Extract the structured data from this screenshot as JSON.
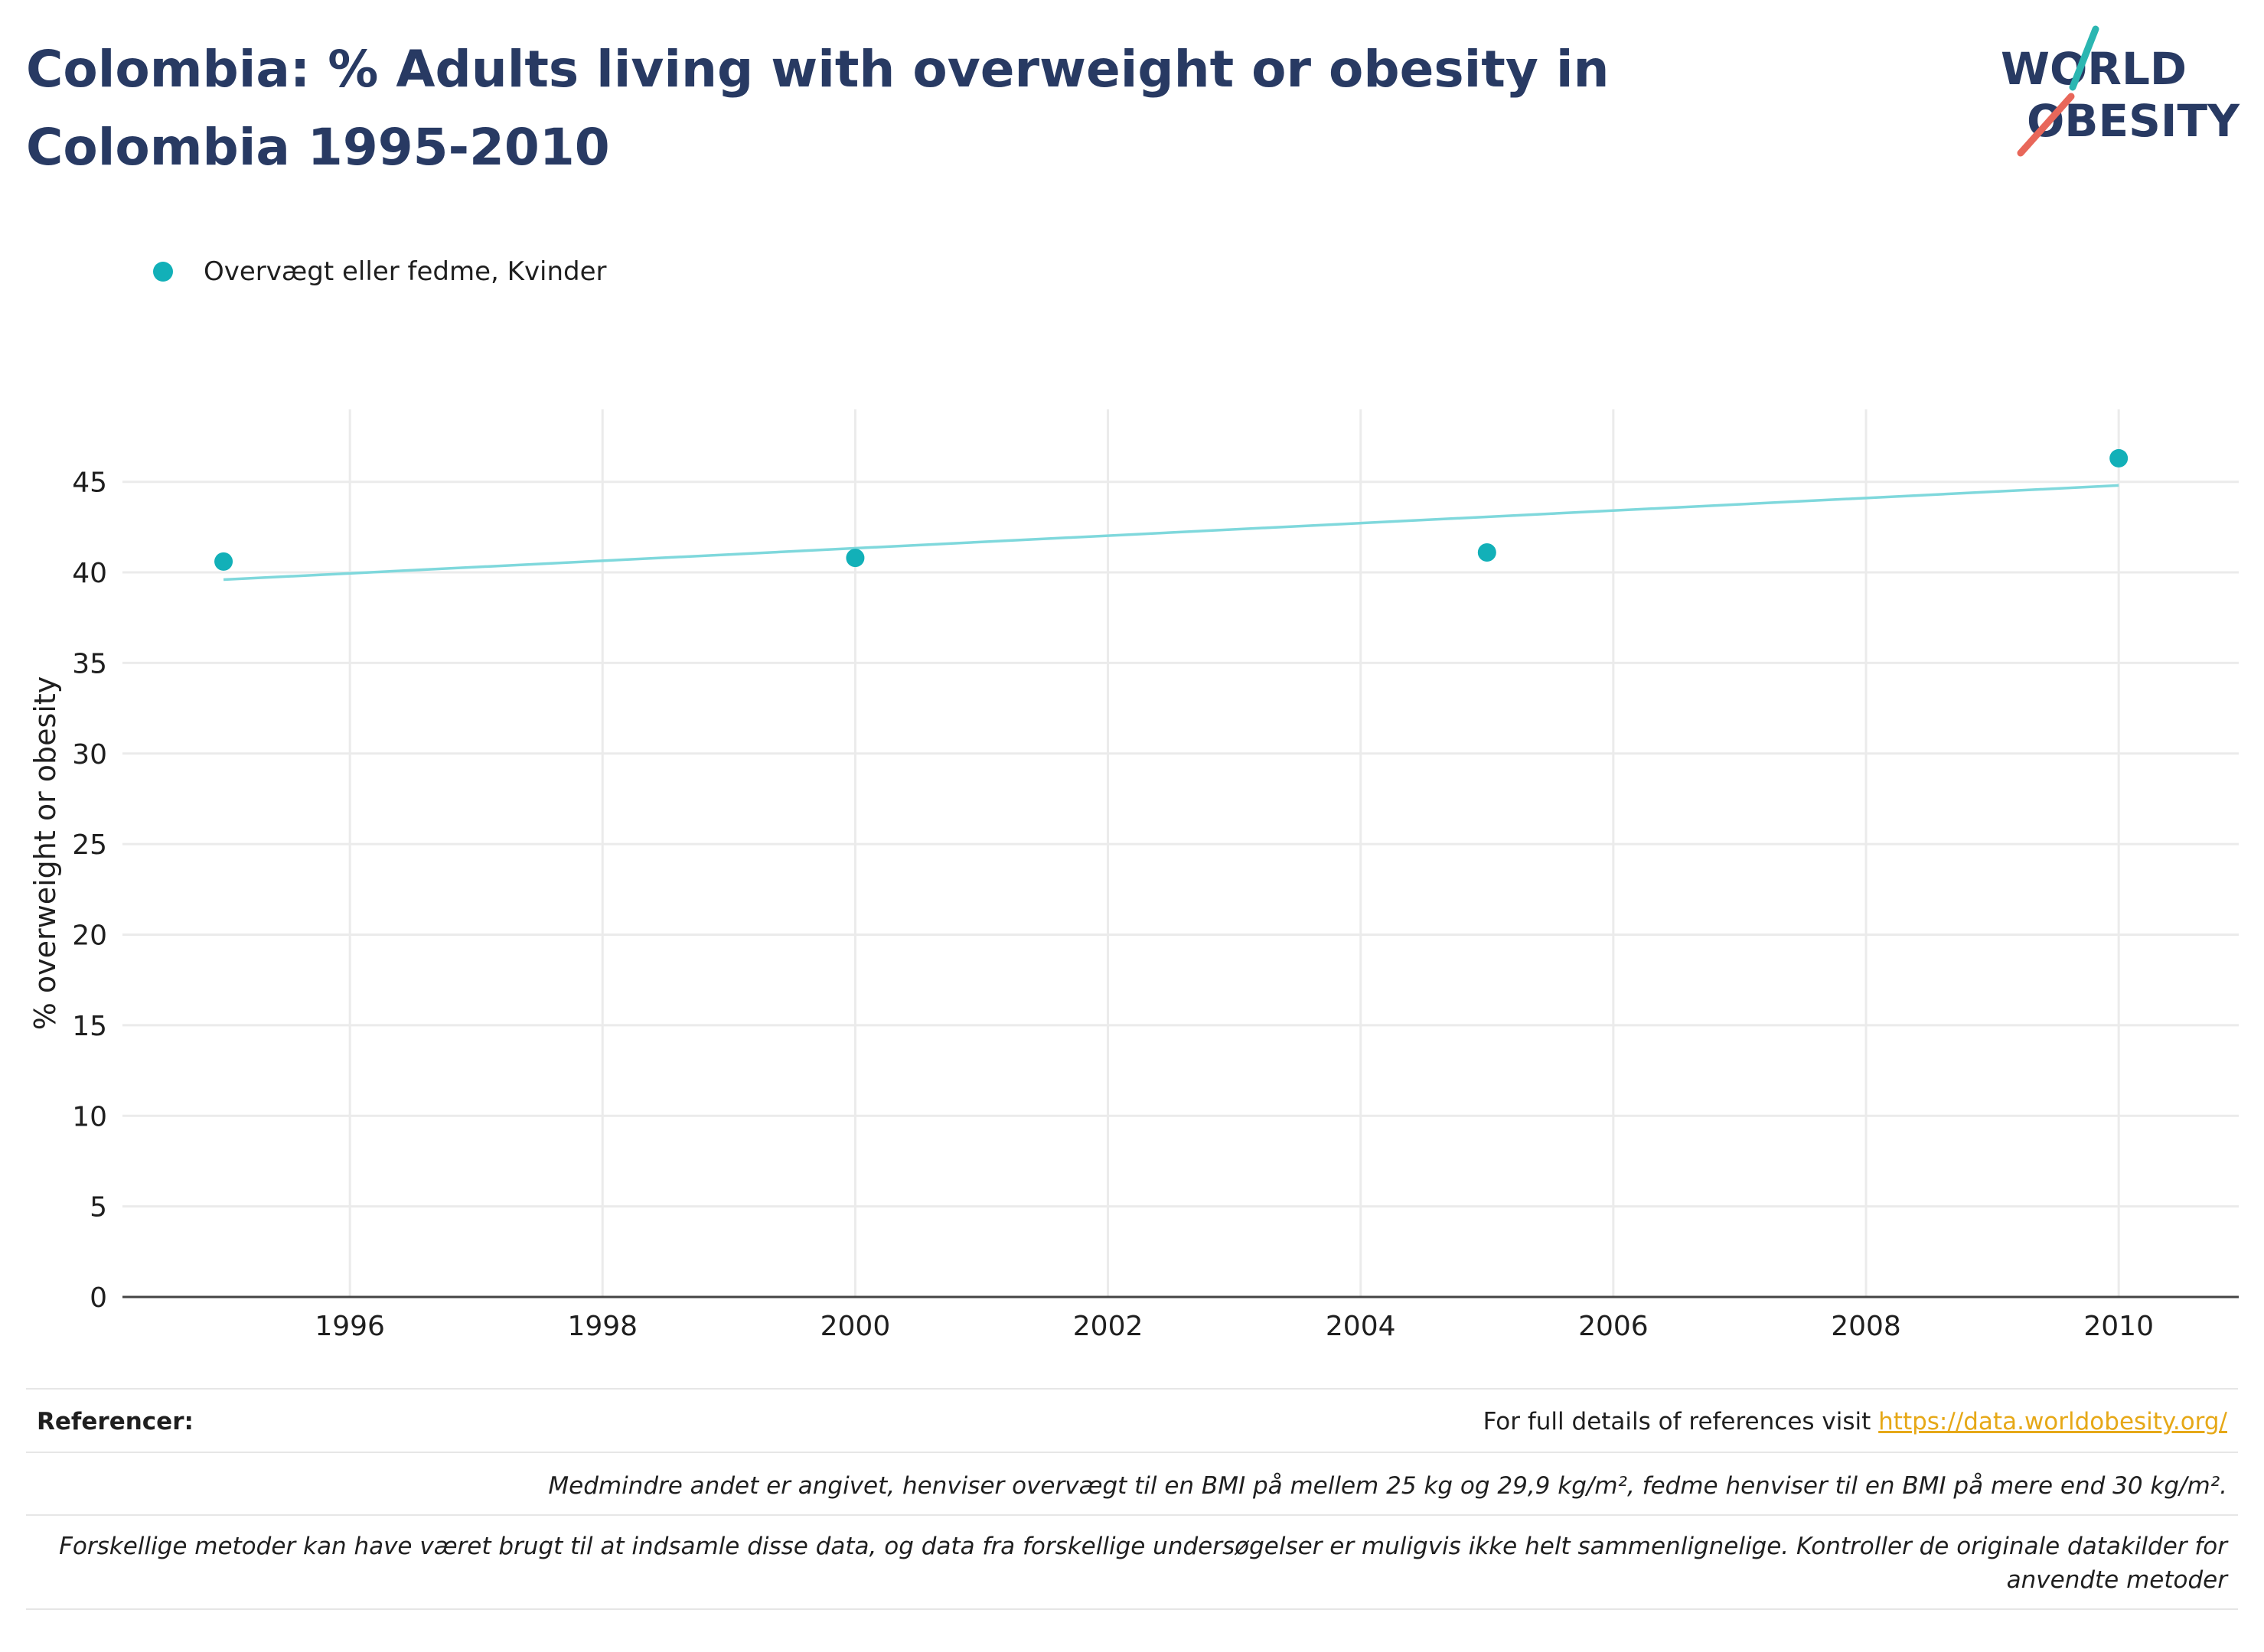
{
  "title": "Colombia: % Adults living with overweight or obesity in Colombia 1995-2010",
  "logo": {
    "line1": "WORLD",
    "line2": "OBESITY",
    "accent_teal": "#2bb6b1",
    "accent_red": "#e8675a",
    "text_color": "#283a63"
  },
  "chart_data": {
    "type": "scatter",
    "title": "Colombia: % Adults living with overweight or obesity in Colombia 1995-2010",
    "xlabel": "",
    "ylabel": "% overweight or obesity",
    "xlim": [
      1994.2,
      2010.95
    ],
    "ylim": [
      0,
      49
    ],
    "x_ticks": [
      1996,
      1998,
      2000,
      2002,
      2004,
      2006,
      2008,
      2010
    ],
    "y_ticks": [
      0,
      5,
      10,
      15,
      20,
      25,
      30,
      35,
      40,
      45
    ],
    "grid": true,
    "legend_position": "top-left",
    "series": [
      {
        "name": "Overvægt eller fedme, Kvinder",
        "color": "#12b0b8",
        "x": [
          1995,
          2000,
          2005,
          2010
        ],
        "y": [
          40.6,
          40.8,
          41.1,
          46.3
        ]
      }
    ],
    "trendline": {
      "color": "#7fd8dc",
      "x": [
        1995,
        2010
      ],
      "y": [
        39.6,
        44.8
      ]
    }
  },
  "references": {
    "label": "Referencer:",
    "details_prefix": "For full details of references visit ",
    "link_text": "https://data.worldobesity.org/",
    "note1": "Medmindre andet er angivet, henviser overvægt til en BMI på mellem 25 kg og 29,9 kg/m², fedme henviser til en BMI på mere end 30 kg/m².",
    "note2_line1": "Forskellige metoder kan have været brugt til at indsamle disse data, og data fra forskellige undersøgelser er muligvis ikke helt sammenlignelige. Kontroller de originale datakilder for",
    "note2_line2": "anvendte metoder"
  }
}
